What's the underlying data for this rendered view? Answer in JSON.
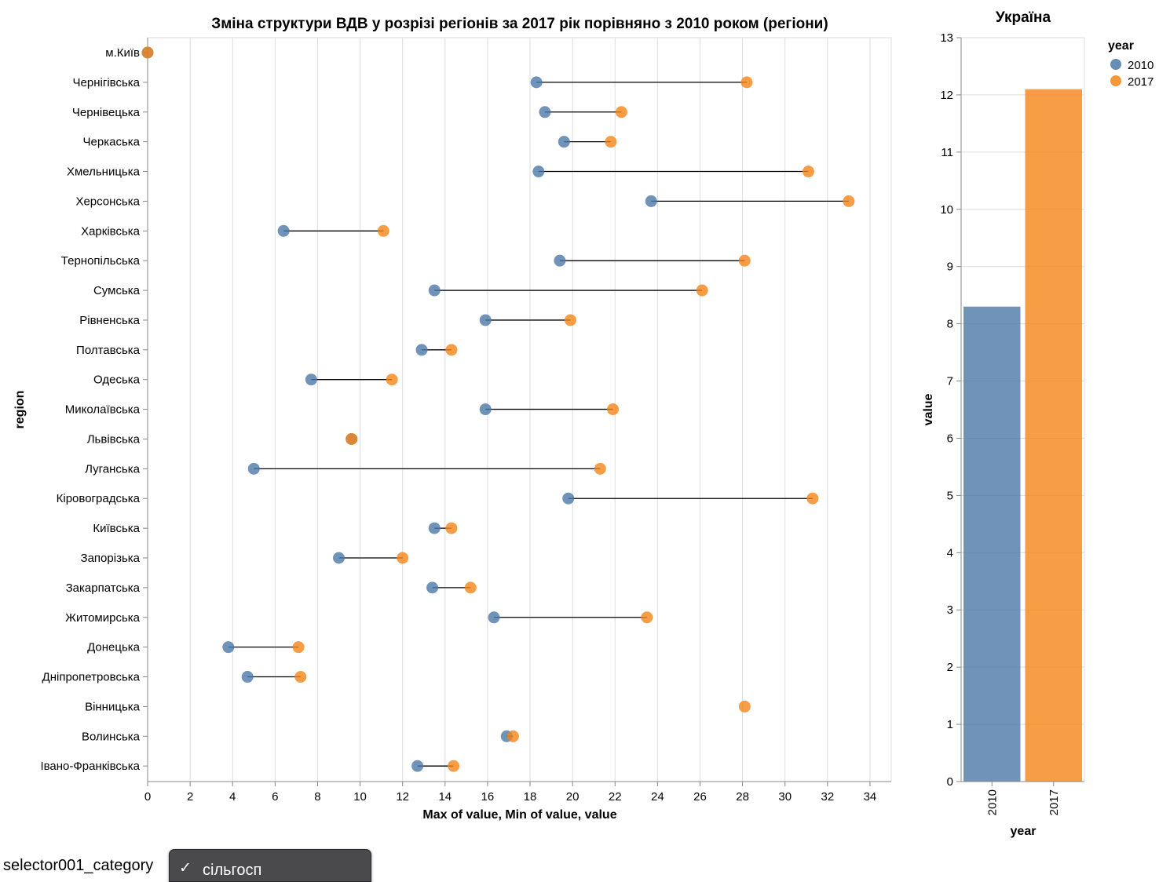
{
  "left_chart": {
    "title": "Зміна структури ВДВ у розрізі регіонів за 2017 рік порівняно з 2010 роком (регіони)",
    "x_axis_title": "Max of value, Min of value, value",
    "y_axis_title": "region"
  },
  "right_chart": {
    "title": "Україна",
    "x_axis_title": "year",
    "y_axis_title": "value"
  },
  "legend": {
    "title": "year",
    "items": [
      {
        "label": "2010",
        "color": "#4c78a8"
      },
      {
        "label": "2017",
        "color": "#f58518"
      }
    ]
  },
  "selector": {
    "label": "selector001_category",
    "check": "✓",
    "selected": "сільгосп"
  },
  "chart_data": [
    {
      "type": "dumbbell",
      "title": "Зміна структури ВДВ у розрізі регіонів за 2017 рік порівняно з 2010 роком (регіони)",
      "xlabel": "Max of value, Min of value, value",
      "ylabel": "region",
      "xlim": [
        0,
        35
      ],
      "xticks": [
        0,
        2,
        4,
        6,
        8,
        10,
        12,
        14,
        16,
        18,
        20,
        22,
        24,
        26,
        28,
        30,
        32,
        34
      ],
      "series": [
        {
          "name": "2010",
          "color": "#4c78a8"
        },
        {
          "name": "2017",
          "color": "#f58518"
        }
      ],
      "rows": [
        {
          "region": "м.Київ",
          "v2010": 0,
          "v2017": 0
        },
        {
          "region": "Чернігівська",
          "v2010": 18.3,
          "v2017": 28.2
        },
        {
          "region": "Чернівецька",
          "v2010": 18.7,
          "v2017": 22.3
        },
        {
          "region": "Черкаська",
          "v2010": 19.6,
          "v2017": 21.8
        },
        {
          "region": "Хмельницька",
          "v2010": 18.4,
          "v2017": 31.1
        },
        {
          "region": "Херсонська",
          "v2010": 23.7,
          "v2017": 33.0
        },
        {
          "region": "Харківська",
          "v2010": 6.4,
          "v2017": 11.1
        },
        {
          "region": "Тернопільська",
          "v2010": 19.4,
          "v2017": 28.1
        },
        {
          "region": "Сумська",
          "v2010": 13.5,
          "v2017": 26.1
        },
        {
          "region": "Рівненська",
          "v2010": 15.9,
          "v2017": 19.9
        },
        {
          "region": "Полтавська",
          "v2010": 12.9,
          "v2017": 14.3
        },
        {
          "region": "Одеська",
          "v2010": 7.7,
          "v2017": 11.5
        },
        {
          "region": "Миколаївська",
          "v2010": 15.9,
          "v2017": 21.9
        },
        {
          "region": "Львівська",
          "v2010": 9.6,
          "v2017": 9.6
        },
        {
          "region": "Луганська",
          "v2010": 5.0,
          "v2017": 21.3
        },
        {
          "region": "Кіровоградська",
          "v2010": 19.8,
          "v2017": 31.3
        },
        {
          "region": "Київська",
          "v2010": 13.5,
          "v2017": 14.3
        },
        {
          "region": "Запорізька",
          "v2010": 9.0,
          "v2017": 12.0
        },
        {
          "region": "Закарпатська",
          "v2010": 13.4,
          "v2017": 15.2
        },
        {
          "region": "Житомирська",
          "v2010": 16.3,
          "v2017": 23.5
        },
        {
          "region": "Донецька",
          "v2010": 3.8,
          "v2017": 7.1
        },
        {
          "region": "Дніпропетровська",
          "v2010": 4.7,
          "v2017": 7.2
        },
        {
          "region": "Вінницька",
          "v2010": null,
          "v2017": 28.1
        },
        {
          "region": "Волинська",
          "v2010": 16.9,
          "v2017": 17.2
        },
        {
          "region": "Івано-Франківська",
          "v2010": 12.7,
          "v2017": 14.4
        }
      ]
    },
    {
      "type": "bar",
      "title": "Україна",
      "xlabel": "year",
      "ylabel": "value",
      "categories": [
        "2010",
        "2017"
      ],
      "values": [
        8.3,
        12.1
      ],
      "colors": [
        "#4c78a8",
        "#f58518"
      ],
      "ylim": [
        0,
        13
      ],
      "yticks": [
        0,
        1,
        2,
        3,
        4,
        5,
        6,
        7,
        8,
        9,
        10,
        11,
        12,
        13
      ]
    }
  ]
}
